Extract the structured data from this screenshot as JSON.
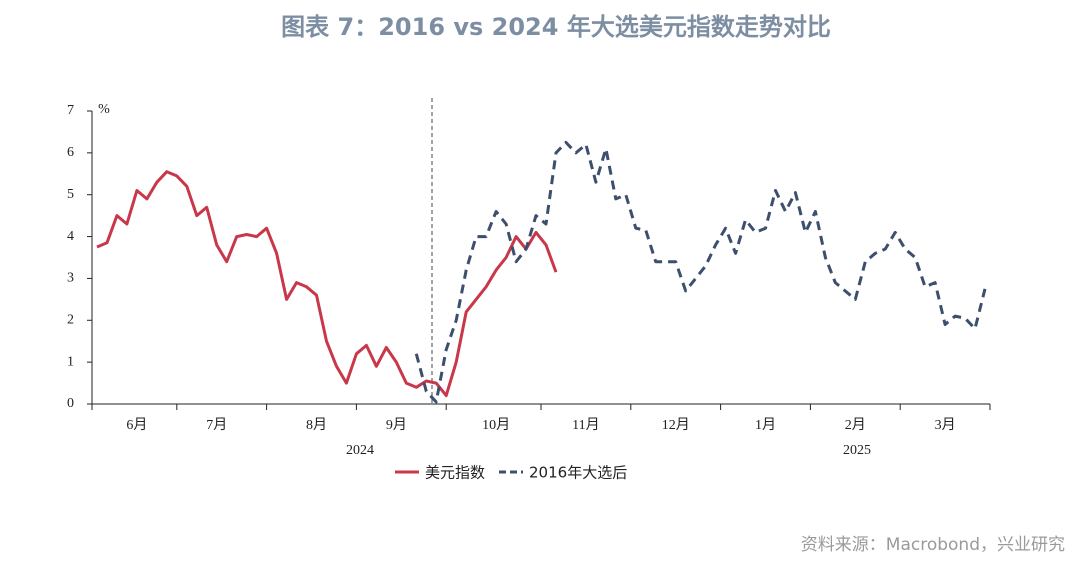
{
  "chart_data": {
    "type": "line",
    "title": "图表 7：2016 vs 2024 年大选美元指数走势对比",
    "y_unit": "%",
    "source": "资料来源：Macrobond，兴业研究",
    "year_labels": [
      "2024",
      "2025"
    ],
    "categories": [
      null,
      null,
      null,
      null,
      "6月",
      null,
      null,
      null,
      null,
      null,
      null,
      null,
      "7月",
      null,
      null,
      null,
      null,
      null,
      null,
      null,
      null,
      null,
      "8月",
      null,
      null,
      null,
      null,
      null,
      null,
      null,
      "9月",
      null,
      null,
      null,
      null,
      null,
      null,
      null,
      null,
      null,
      "10月",
      null,
      null,
      null,
      null,
      null,
      null,
      null,
      null,
      "11月",
      null,
      null,
      null,
      null,
      null,
      null,
      null,
      null,
      "12月",
      null,
      null,
      null,
      null,
      null,
      null,
      null,
      null,
      "1月",
      null,
      null,
      null,
      null,
      null,
      null,
      null,
      null,
      "2月",
      null,
      null,
      null,
      null,
      null,
      null,
      null,
      null,
      "3月",
      null,
      null,
      null,
      null
    ],
    "series": [
      {
        "name": "美元指数",
        "color": "#c8374a",
        "dash": false,
        "values": [
          3.75,
          3.85,
          4.5,
          4.3,
          5.1,
          4.9,
          5.3,
          5.55,
          5.45,
          5.2,
          4.5,
          4.7,
          3.8,
          3.4,
          4.0,
          4.05,
          4.0,
          4.2,
          3.6,
          2.5,
          2.9,
          2.8,
          2.6,
          1.5,
          0.9,
          0.5,
          1.2,
          1.4,
          0.9,
          1.35,
          1.0,
          0.5,
          0.4,
          0.55,
          0.5,
          0.2,
          1.0,
          2.2,
          2.5,
          2.8,
          3.2,
          3.5,
          4.0,
          3.7,
          4.1,
          3.8,
          3.15,
          null,
          null,
          null,
          null,
          null,
          null,
          null,
          null,
          null,
          null,
          null,
          null,
          null,
          null,
          null,
          null,
          null,
          null,
          null,
          null,
          null,
          null,
          null,
          null,
          null,
          null,
          null,
          null,
          null,
          null,
          null,
          null,
          null,
          null,
          null,
          null,
          null,
          null,
          null,
          null,
          null,
          null,
          null
        ]
      },
      {
        "name": "2016年大选后",
        "color": "#3d4f6e",
        "dash": true,
        "values": [
          null,
          null,
          null,
          null,
          null,
          null,
          null,
          null,
          null,
          null,
          null,
          null,
          null,
          null,
          null,
          null,
          null,
          null,
          null,
          null,
          null,
          null,
          null,
          null,
          null,
          null,
          null,
          null,
          null,
          null,
          null,
          null,
          1.2,
          0.3,
          0.05,
          1.3,
          2.0,
          3.2,
          4.0,
          4.0,
          4.6,
          4.3,
          3.4,
          3.7,
          4.5,
          4.3,
          6.0,
          6.25,
          6.0,
          6.2,
          5.3,
          6.1,
          4.9,
          5.0,
          4.2,
          4.15,
          3.4,
          3.4,
          3.4,
          2.7,
          3.0,
          3.3,
          3.8,
          4.2,
          3.6,
          4.4,
          4.1,
          4.2,
          5.1,
          4.6,
          5.05,
          4.1,
          4.6,
          3.5,
          2.9,
          2.7,
          2.5,
          3.4,
          3.6,
          3.7,
          4.1,
          3.7,
          3.5,
          2.8,
          2.9,
          1.9,
          2.1,
          2.05,
          1.8,
          2.75
        ]
      }
    ],
    "ylim": [
      0,
      7
    ],
    "yticks": [
      0,
      1,
      2,
      3,
      4,
      5,
      6,
      7
    ],
    "grid": false
  }
}
